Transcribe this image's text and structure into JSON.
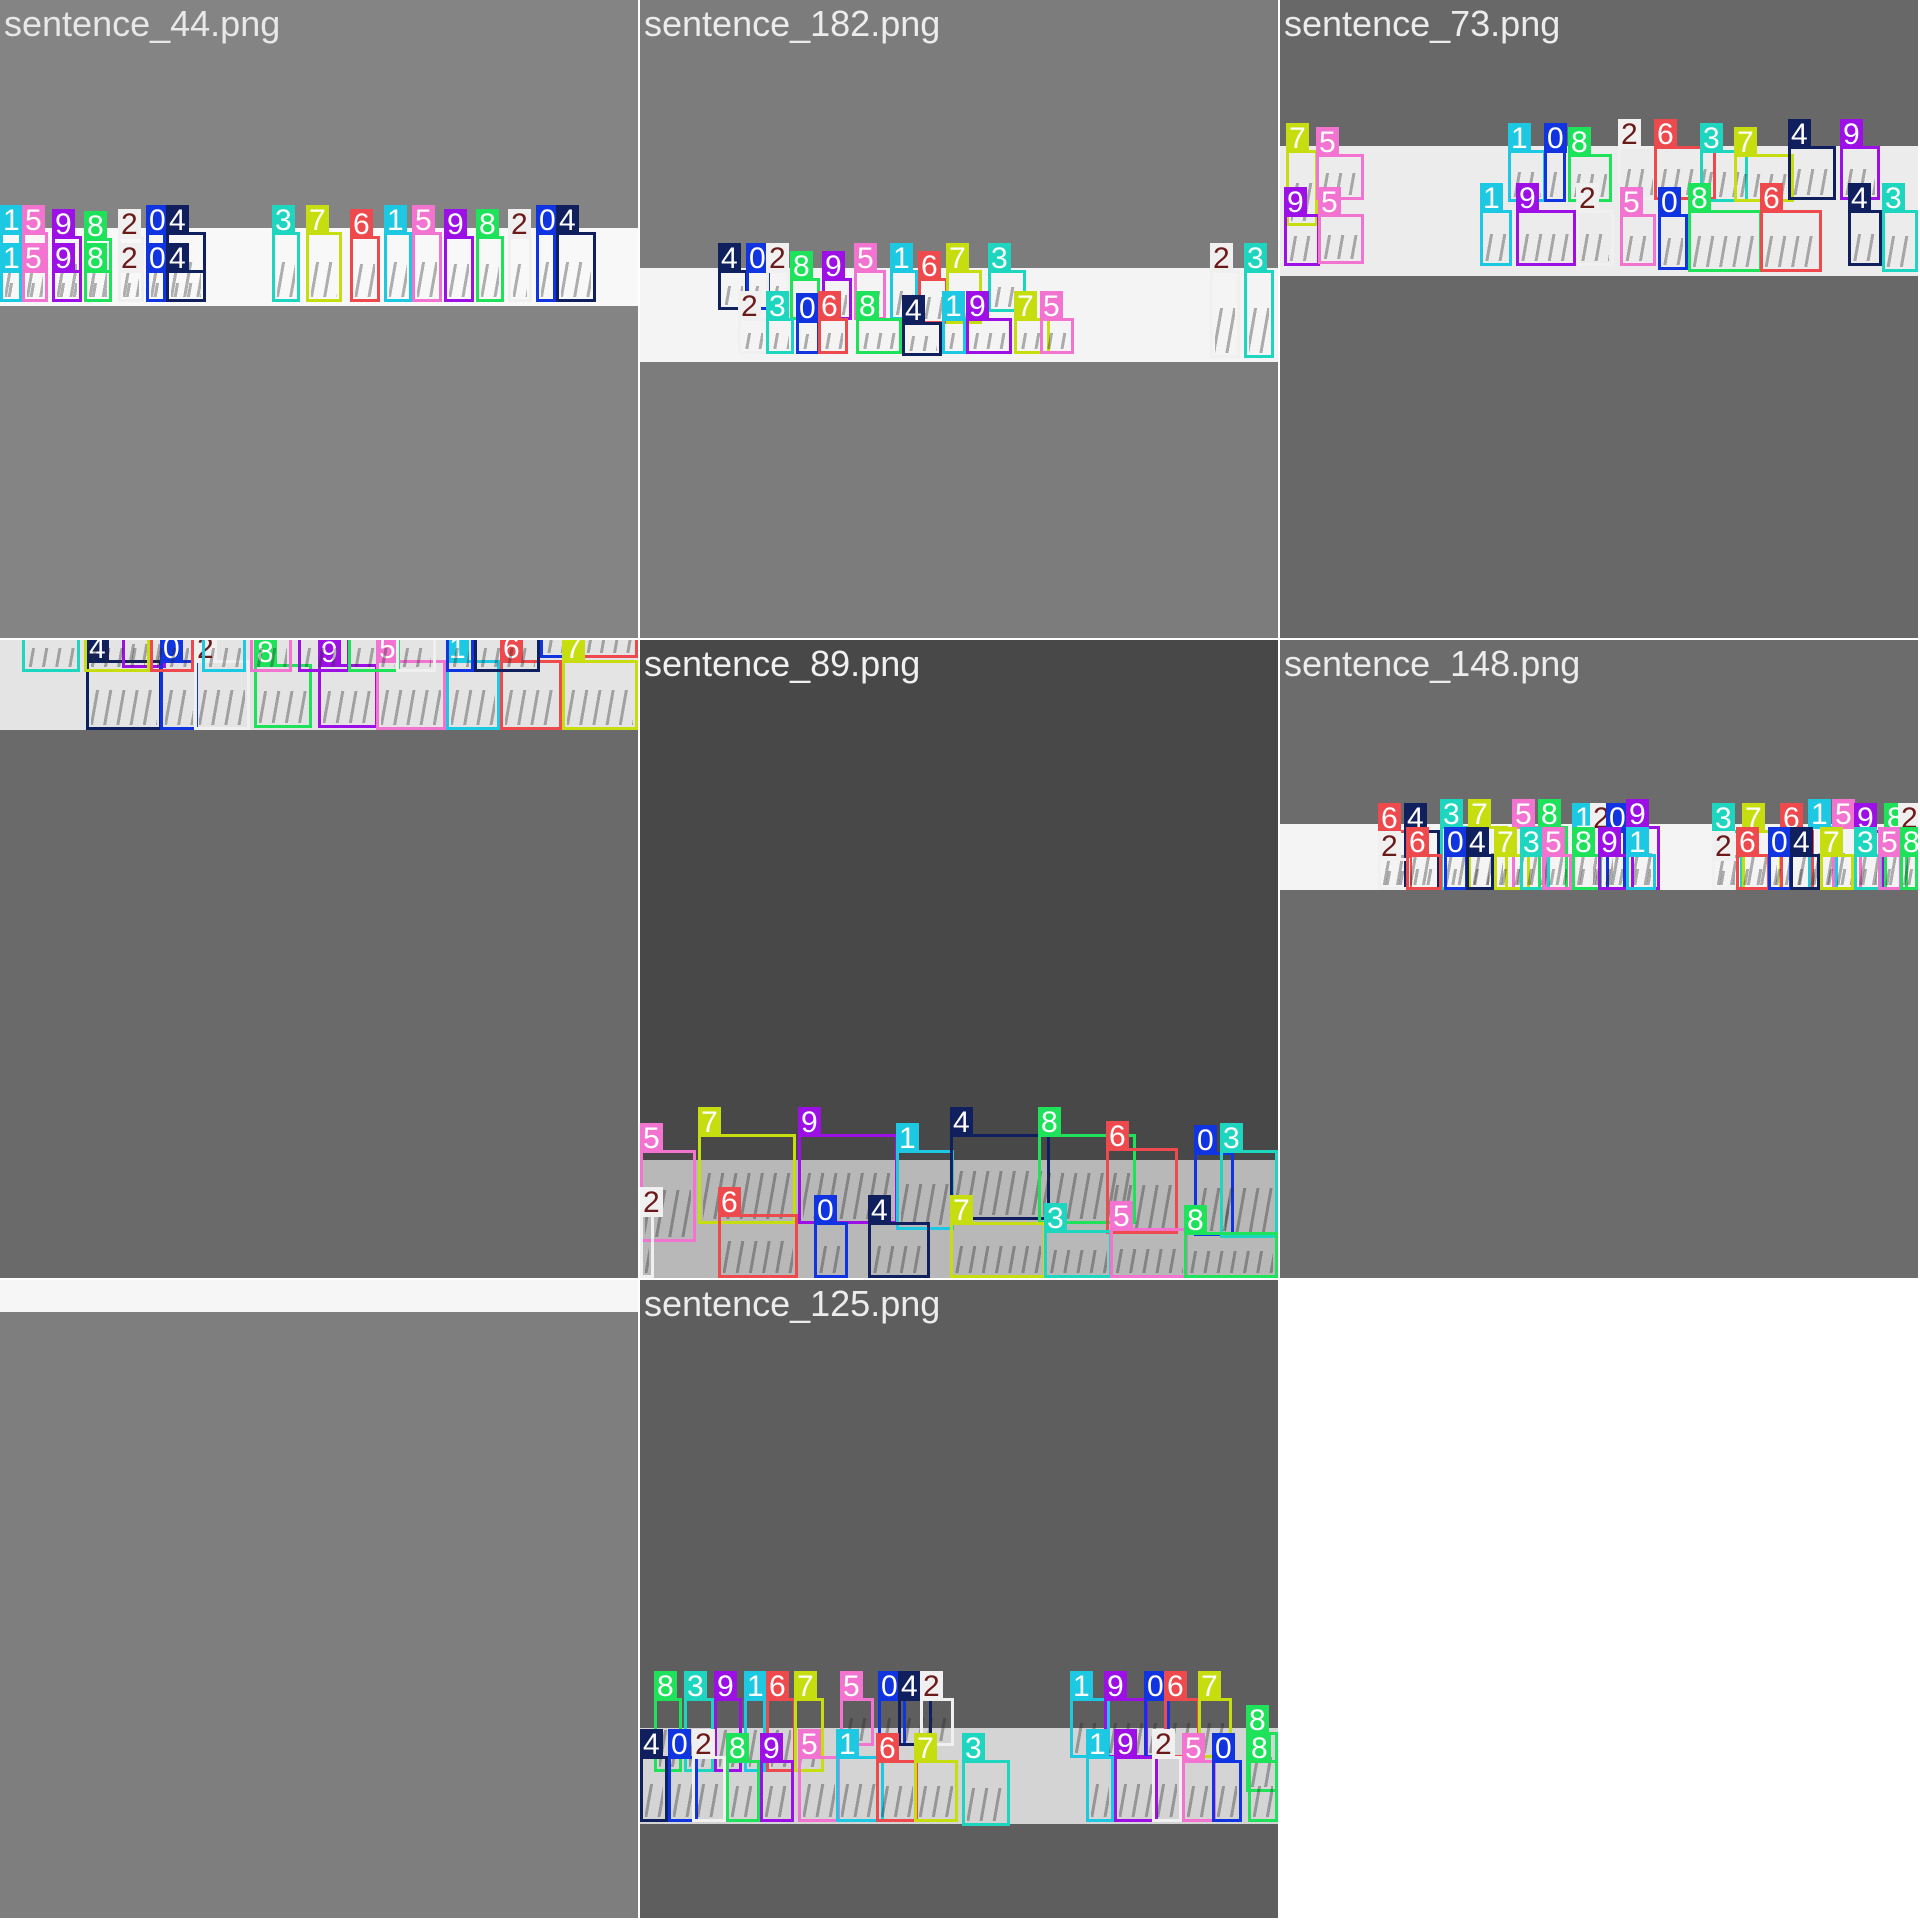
{
  "grid": {
    "tiles": [
      {
        "title": "sentence_44.png",
        "title_color": "#e8e8e8",
        "bg": "#848484"
      },
      {
        "title": "sentence_182.png",
        "title_color": "#ececec",
        "bg": "#7c7c7c"
      },
      {
        "title": "sentence_73.png",
        "title_color": "#ececec",
        "bg": "#686868"
      },
      {
        "title": "",
        "title_color": "#d8d8d8",
        "bg": "#6a6a6a"
      },
      {
        "title": "sentence_89.png",
        "title_color": "#f0f0f0",
        "bg": "#484848"
      },
      {
        "title": "sentence_148.png",
        "title_color": "#ececec",
        "bg": "#6c6c6c"
      },
      {
        "title": "",
        "title_color": "#e0e0e0",
        "bg": "#7e7e7e"
      },
      {
        "title": "sentence_125.png",
        "title_color": "#ececec",
        "bg": "#5e5e5e"
      }
    ]
  },
  "class_colors": {
    "0": "#1034e0",
    "1": "#1cc8e2",
    "2": "#f0f0f0",
    "3": "#1ed6c0",
    "4": "#10205e",
    "5": "#f274d0",
    "6": "#ee4a4e",
    "7": "#c6de10",
    "8": "#1ee25a",
    "9": "#9c10e6"
  }
}
